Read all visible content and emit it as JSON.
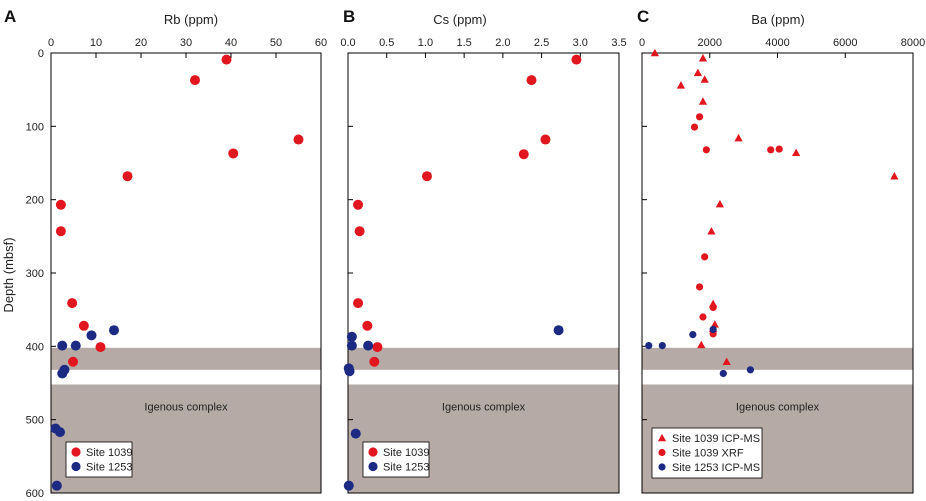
{
  "figure": {
    "ylabel": "Depth (mbsf)",
    "y_ticks": [
      0,
      100,
      200,
      300,
      400,
      500,
      600
    ],
    "band_label": "Igenous complex",
    "colors": {
      "site_1039": "#e2161f",
      "site_1253": "#1c2a83",
      "band": "#b6aaa7"
    }
  },
  "chart_data": [
    {
      "panel": "A",
      "type": "scatter",
      "xlabel": "Rb (ppm)",
      "xlim": [
        0,
        60
      ],
      "x_ticks": [
        0,
        10,
        20,
        30,
        40,
        50,
        60
      ],
      "ylabel": "Depth (mbsf)",
      "ylim": [
        600,
        0
      ],
      "grid": false,
      "legend_position": "bottom-left",
      "shaded_intervals": [
        [
          402,
          432
        ],
        [
          452,
          600
        ]
      ],
      "series": [
        {
          "name": "Site 1039",
          "marker": "circle",
          "color": "#e2161f",
          "points": [
            [
              39,
              9
            ],
            [
              32,
              37
            ],
            [
              55,
              118
            ],
            [
              40.5,
              137
            ],
            [
              17,
              168
            ],
            [
              2.2,
              207
            ],
            [
              2.2,
              243
            ],
            [
              4.7,
              341
            ],
            [
              7.3,
              372
            ],
            [
              11,
              401
            ],
            [
              4.9,
              421
            ]
          ]
        },
        {
          "name": "Site 1253",
          "marker": "circle",
          "color": "#1c2a83",
          "points": [
            [
              14,
              378
            ],
            [
              9,
              385
            ],
            [
              5.5,
              399
            ],
            [
              2.5,
              399
            ],
            [
              3,
              432
            ],
            [
              2.5,
              437
            ],
            [
              1,
              512
            ],
            [
              2,
              517
            ],
            [
              1.3,
              590
            ]
          ]
        }
      ]
    },
    {
      "panel": "B",
      "type": "scatter",
      "xlabel": "Cs (ppm)",
      "xlim": [
        0,
        3.5
      ],
      "x_ticks": [
        "0.0",
        "0.5",
        "1.0",
        "1.5",
        "2.0",
        "2.5",
        "3.0",
        "3.5"
      ],
      "ylabel": "",
      "ylim": [
        600,
        0
      ],
      "grid": false,
      "legend_position": "bottom-left",
      "shaded_intervals": [
        [
          402,
          432
        ],
        [
          452,
          600
        ]
      ],
      "series": [
        {
          "name": "Site 1039",
          "marker": "circle",
          "color": "#e2161f",
          "points": [
            [
              2.95,
              9
            ],
            [
              2.37,
              37
            ],
            [
              2.55,
              118
            ],
            [
              2.27,
              138
            ],
            [
              1.02,
              168
            ],
            [
              0.13,
              207
            ],
            [
              0.15,
              243
            ],
            [
              0.13,
              341
            ],
            [
              0.25,
              372
            ],
            [
              0.38,
              401
            ],
            [
              0.34,
              421
            ]
          ]
        },
        {
          "name": "Site 1253",
          "marker": "circle",
          "color": "#1c2a83",
          "points": [
            [
              2.72,
              378
            ],
            [
              0.05,
              387
            ],
            [
              0.05,
              399
            ],
            [
              0.26,
              399
            ],
            [
              0.01,
              430
            ],
            [
              0.02,
              434
            ],
            [
              0.1,
              519
            ],
            [
              0.01,
              590
            ]
          ]
        }
      ]
    },
    {
      "panel": "C",
      "type": "scatter",
      "xlabel": "Ba (ppm)",
      "xlim": [
        0,
        8000
      ],
      "x_ticks": [
        0,
        2000,
        4000,
        6000,
        8000
      ],
      "ylabel": "",
      "ylim": [
        600,
        0
      ],
      "grid": false,
      "legend_position": "bottom-left",
      "shaded_intervals": [
        [
          402,
          432
        ],
        [
          452,
          600
        ]
      ],
      "series": [
        {
          "name": "Site 1039 ICP-MS",
          "marker": "triangle",
          "color": "#e2161f",
          "points": [
            [
              380,
              0
            ],
            [
              1800,
              7
            ],
            [
              1650,
              27
            ],
            [
              1850,
              36
            ],
            [
              1150,
              44
            ],
            [
              1800,
              66
            ],
            [
              2850,
              116
            ],
            [
              4550,
              136
            ],
            [
              7450,
              168
            ],
            [
              2300,
              206
            ],
            [
              2050,
              243
            ],
            [
              2100,
              342
            ],
            [
              2150,
              370
            ],
            [
              2100,
              376
            ],
            [
              1750,
              398
            ],
            [
              2500,
              421
            ]
          ]
        },
        {
          "name": "Site 1039 XRF",
          "marker": "circle",
          "color": "#e2161f",
          "points": [
            [
              1700,
              87
            ],
            [
              1550,
              101
            ],
            [
              1900,
              132
            ],
            [
              3800,
              132
            ],
            [
              4050,
              131
            ],
            [
              1850,
              278
            ],
            [
              1700,
              319
            ],
            [
              2100,
              347
            ],
            [
              1800,
              360
            ],
            [
              2100,
              383
            ]
          ]
        },
        {
          "name": "Site 1253 ICP-MS",
          "marker": "circle",
          "color": "#1c2a83",
          "points": [
            [
              1500,
              384
            ],
            [
              2100,
              377
            ],
            [
              200,
              399
            ],
            [
              600,
              399
            ],
            [
              2400,
              437
            ],
            [
              3200,
              432
            ]
          ]
        }
      ]
    }
  ]
}
